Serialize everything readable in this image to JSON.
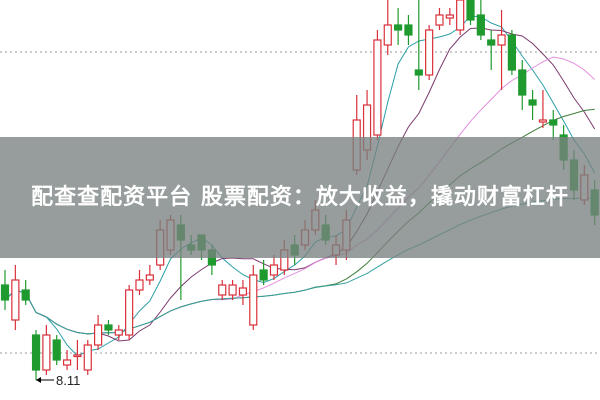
{
  "banner": {
    "title": "配查查配资平台 股票配资：放大收益，撬动财富杠杆"
  },
  "chart_data": {
    "type": "candlestick",
    "title": "",
    "annotations": [
      {
        "label": "8.11",
        "price": 8.11,
        "candle_index": 3
      }
    ],
    "ylim": [
      7.5,
      15.71
    ],
    "grid": "dotted horizontal",
    "colors": {
      "up": "#d9303a",
      "down": "#1f9a2e",
      "ma": [
        "#2a9fa8",
        "#7b3a6e",
        "#e58fe0",
        "#3e7d3a",
        "#3aa0a0"
      ]
    },
    "candles_ohlc": [
      [
        10.01,
        9.71,
        10.31,
        9.51
      ],
      [
        9.31,
        10.11,
        10.41,
        9.11
      ],
      [
        9.91,
        9.71,
        10.11,
        9.61
      ],
      [
        9.01,
        8.31,
        9.11,
        8.11
      ],
      [
        8.31,
        9.01,
        9.21,
        8.21
      ],
      [
        8.91,
        8.51,
        9.01,
        8.41
      ],
      [
        8.41,
        8.51,
        8.71,
        8.31
      ],
      [
        8.61,
        8.61,
        8.91,
        8.31
      ],
      [
        8.31,
        8.81,
        8.91,
        8.21
      ],
      [
        8.81,
        9.21,
        9.41,
        8.71
      ],
      [
        9.21,
        9.11,
        9.31,
        9.01
      ],
      [
        9.01,
        9.11,
        9.21,
        8.91
      ],
      [
        9.01,
        9.91,
        10.01,
        8.91
      ],
      [
        9.91,
        10.11,
        10.31,
        9.81
      ],
      [
        10.11,
        10.21,
        10.41,
        10.01
      ],
      [
        10.41,
        11.11,
        11.31,
        10.31
      ],
      [
        10.71,
        11.31,
        11.41,
        10.61
      ],
      [
        11.21,
        10.91,
        11.41,
        9.71
      ],
      [
        10.81,
        10.71,
        11.01,
        10.61
      ],
      [
        11.01,
        10.71,
        11.01,
        10.51
      ],
      [
        10.71,
        10.41,
        10.81,
        10.21
      ],
      [
        9.81,
        10.01,
        10.11,
        9.71
      ],
      [
        9.81,
        10.01,
        10.11,
        9.71
      ],
      [
        9.81,
        9.95,
        10.11,
        9.61
      ],
      [
        9.21,
        10.21,
        10.41,
        9.11
      ],
      [
        10.31,
        10.11,
        10.51,
        10.01
      ],
      [
        10.21,
        10.41,
        10.61,
        10.11
      ],
      [
        10.31,
        10.71,
        10.91,
        10.21
      ],
      [
        10.81,
        10.61,
        11.01,
        10.41
      ],
      [
        10.81,
        11.11,
        11.31,
        10.71
      ],
      [
        11.11,
        11.51,
        11.71,
        11.01
      ],
      [
        11.21,
        10.91,
        11.41,
        10.81
      ],
      [
        10.61,
        10.81,
        11.01,
        10.41
      ],
      [
        10.71,
        11.31,
        11.51,
        10.51
      ],
      [
        12.31,
        13.31,
        13.81,
        12.21
      ],
      [
        12.71,
        13.61,
        13.91,
        12.51
      ],
      [
        13.01,
        14.91,
        15.11,
        12.91
      ],
      [
        14.81,
        15.21,
        15.71,
        14.61
      ],
      [
        15.21,
        15.11,
        15.55,
        14.81
      ],
      [
        15.21,
        15.01,
        15.41,
        14.81
      ],
      [
        14.31,
        14.21,
        15.71,
        13.91
      ],
      [
        14.21,
        15.11,
        15.21,
        14.11
      ],
      [
        15.21,
        15.41,
        15.55,
        15.11
      ],
      [
        15.35,
        15.41,
        15.55,
        15.21
      ],
      [
        15.11,
        15.71,
        15.71,
        15.01
      ],
      [
        15.71,
        15.31,
        15.71,
        15.21
      ],
      [
        15.41,
        15.01,
        15.71,
        14.91
      ],
      [
        14.91,
        14.81,
        15.11,
        14.31
      ],
      [
        14.81,
        15.01,
        15.51,
        13.91
      ],
      [
        15.01,
        14.31,
        15.11,
        14.21
      ],
      [
        14.31,
        13.81,
        14.51,
        13.51
      ],
      [
        13.71,
        13.61,
        13.91,
        13.31
      ],
      [
        13.27,
        13.31,
        13.91,
        13.15
      ],
      [
        13.31,
        13.21,
        13.51,
        12.91
      ],
      [
        13.01,
        12.51,
        13.21,
        12.31
      ],
      [
        12.51,
        11.91,
        12.71,
        11.71
      ],
      [
        11.71,
        12.21,
        12.41,
        11.61
      ],
      [
        11.91,
        11.41,
        12.11,
        11.21
      ]
    ]
  }
}
